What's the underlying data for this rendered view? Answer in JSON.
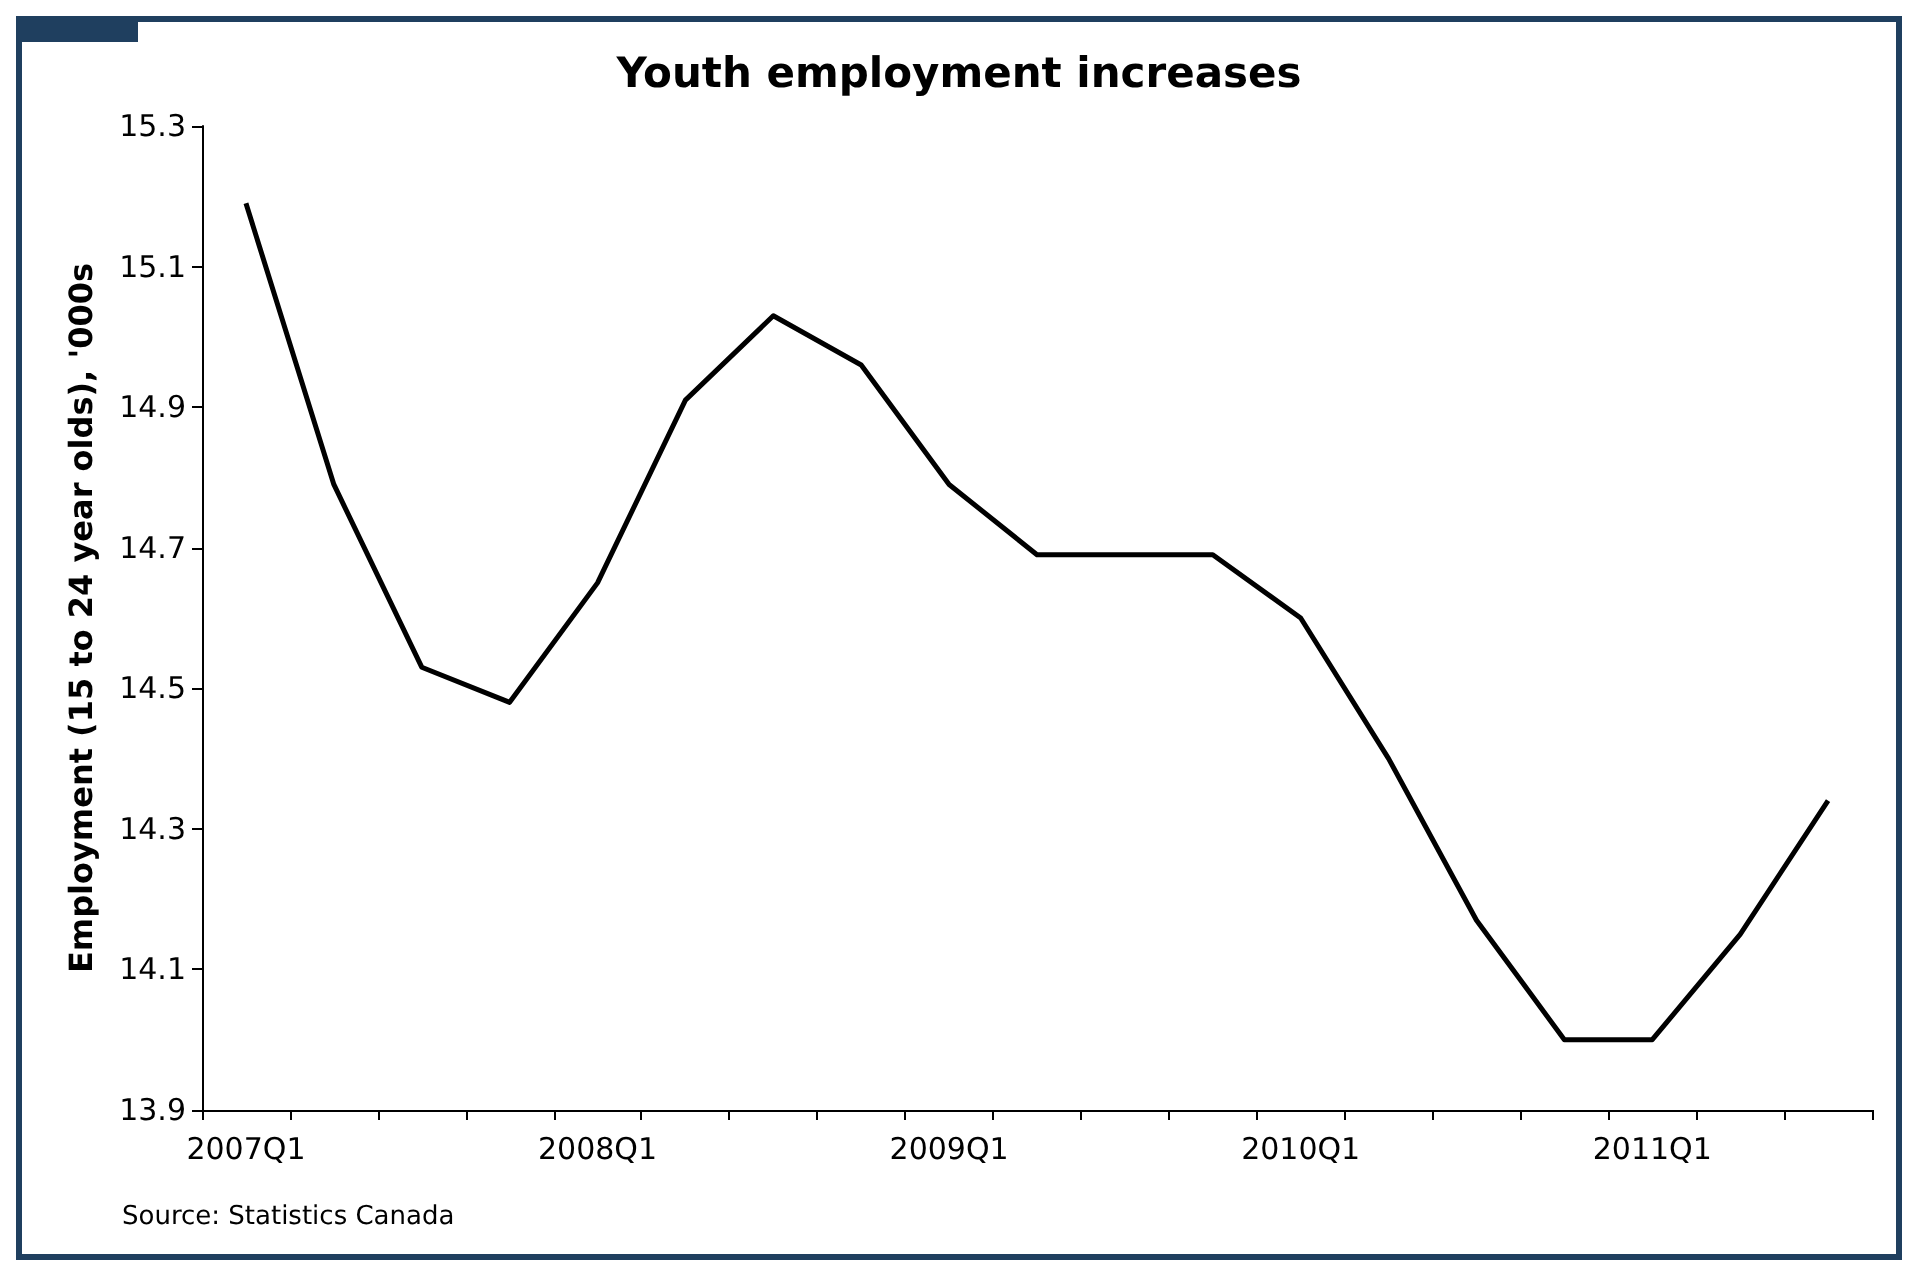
{
  "chart_data": {
    "type": "line",
    "title": "Youth employment increases",
    "ylabel": "Employment (15 to 24 year olds), '000s",
    "categories": [
      "2007Q1",
      null,
      null,
      null,
      "2008Q1",
      null,
      null,
      null,
      "2009Q1",
      null,
      null,
      null,
      "2010Q1",
      null,
      null,
      null,
      "2011Q1",
      null,
      null
    ],
    "series": [
      {
        "color": "#000000",
        "values": [
          15.19,
          14.79,
          14.53,
          14.48,
          14.65,
          14.91,
          15.03,
          14.96,
          14.79,
          14.69,
          14.69,
          14.69,
          14.6,
          14.4,
          14.17,
          14.0,
          14.0,
          14.15,
          14.34
        ]
      }
    ],
    "ylim": [
      13.9,
      15.3
    ],
    "yticks": [
      13.9,
      14.1,
      14.3,
      14.5,
      14.7,
      14.9,
      15.1,
      15.3
    ],
    "grid": false,
    "marker": "none",
    "line_style": "solid",
    "annotations": [
      "Source: Statistics Canada"
    ]
  }
}
